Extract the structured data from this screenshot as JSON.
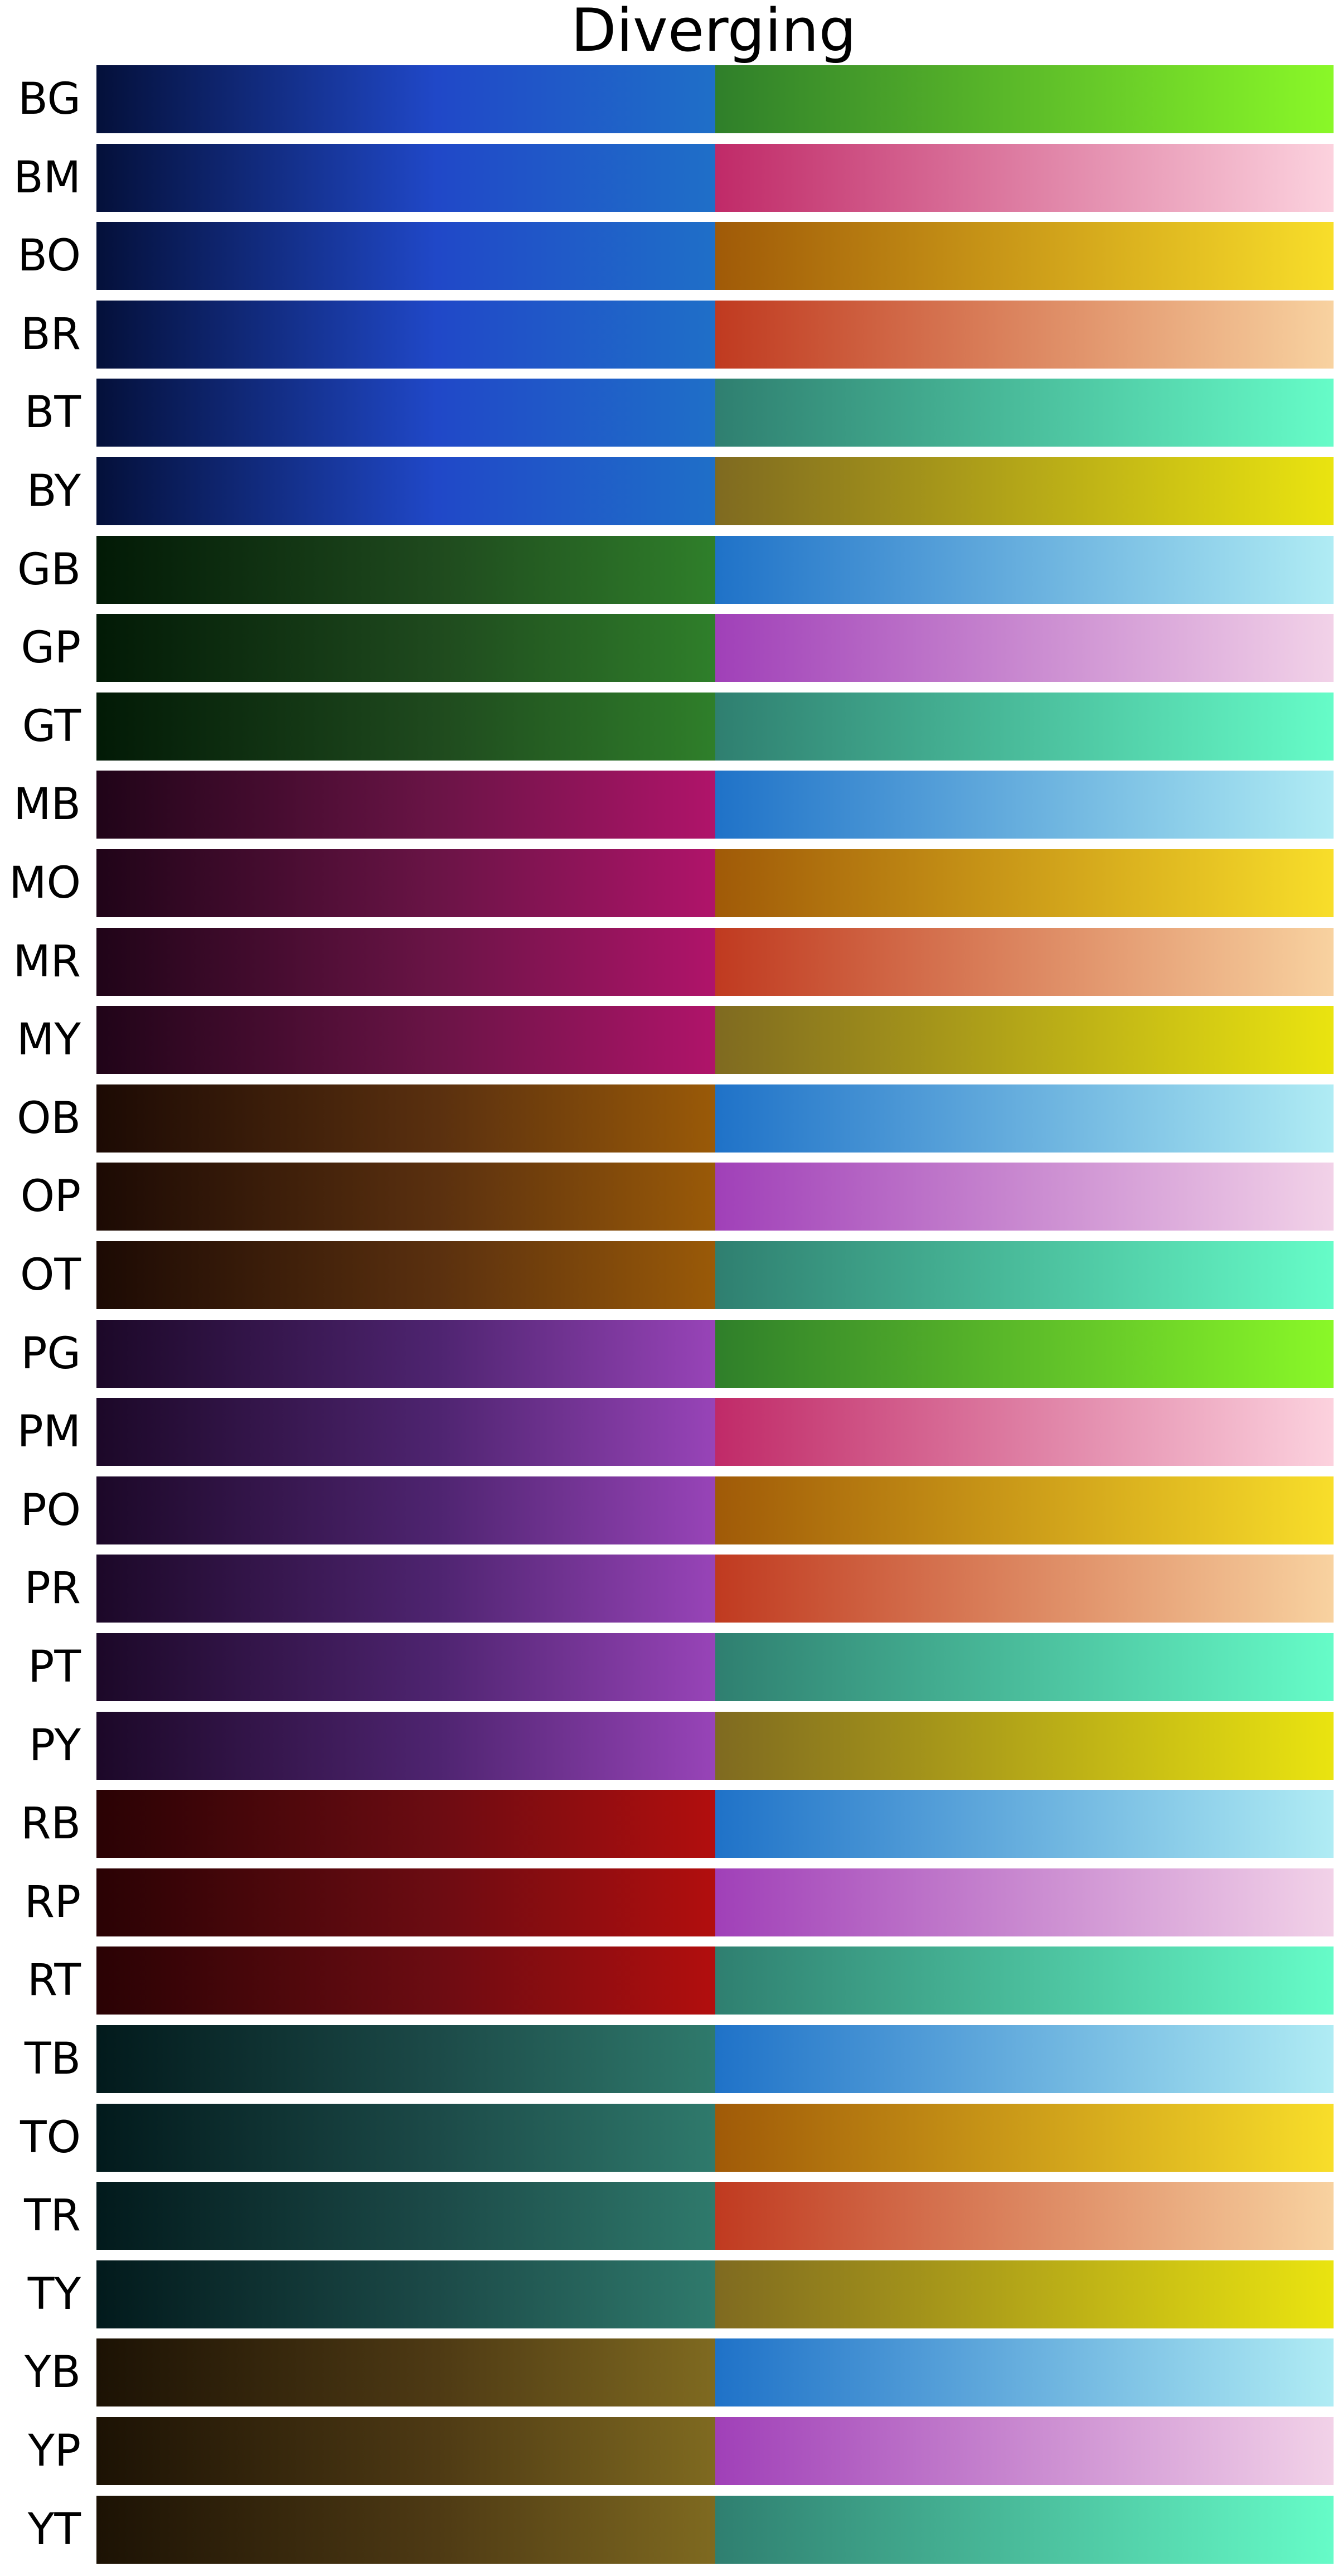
{
  "title": "Diverging",
  "chart_data": {
    "type": "heatmap",
    "title": "Diverging",
    "xlabel": "",
    "ylabel": "",
    "grid": false,
    "legend": "none",
    "colormaps": [
      {
        "name": "BG",
        "stops": [
          "#04103a",
          "#2048c8",
          "#1f6fc8",
          "#2f7f2a",
          "#8af828"
        ]
      },
      {
        "name": "BM",
        "stops": [
          "#04103a",
          "#2048c8",
          "#1f6fc8",
          "#c02a68",
          "#fcd2de"
        ]
      },
      {
        "name": "BO",
        "stops": [
          "#04103a",
          "#2048c8",
          "#1f6fc8",
          "#a05a08",
          "#f8de2a"
        ]
      },
      {
        "name": "BR",
        "stops": [
          "#04103a",
          "#2048c8",
          "#1f6fc8",
          "#c03a20",
          "#f8d2a0"
        ]
      },
      {
        "name": "BT",
        "stops": [
          "#04103a",
          "#2048c8",
          "#1f6fc8",
          "#2f7f70",
          "#66fcc8"
        ]
      },
      {
        "name": "BY",
        "stops": [
          "#04103a",
          "#2048c8",
          "#1f6fc8",
          "#7f6a20",
          "#eae410"
        ]
      },
      {
        "name": "GB",
        "stops": [
          "#021a06",
          "#1f4a1e",
          "#2f7f2a",
          "#1f72c8",
          "#b0ecf4"
        ]
      },
      {
        "name": "GP",
        "stops": [
          "#021a06",
          "#1f4a1e",
          "#2f7f2a",
          "#a040b8",
          "#f2d2e8"
        ]
      },
      {
        "name": "GT",
        "stops": [
          "#021a06",
          "#1f4a1e",
          "#2f7f2a",
          "#2f7f70",
          "#66fcc8"
        ]
      },
      {
        "name": "MB",
        "stops": [
          "#200418",
          "#6a1446",
          "#b0146a",
          "#1f72c8",
          "#b0ecf4"
        ]
      },
      {
        "name": "MO",
        "stops": [
          "#200418",
          "#6a1446",
          "#b0146a",
          "#a05a08",
          "#f8de2a"
        ]
      },
      {
        "name": "MR",
        "stops": [
          "#200418",
          "#6a1446",
          "#b0146a",
          "#c03a20",
          "#f8d2a0"
        ]
      },
      {
        "name": "MY",
        "stops": [
          "#200418",
          "#6a1446",
          "#b0146a",
          "#7f6a20",
          "#eae410"
        ]
      },
      {
        "name": "OB",
        "stops": [
          "#1c0a04",
          "#5a300f",
          "#9a5a08",
          "#1f72c8",
          "#b0ecf4"
        ]
      },
      {
        "name": "OP",
        "stops": [
          "#1c0a04",
          "#5a300f",
          "#9a5a08",
          "#a040b8",
          "#f2d2e8"
        ]
      },
      {
        "name": "OT",
        "stops": [
          "#1c0a04",
          "#5a300f",
          "#9a5a08",
          "#2f7f70",
          "#66fcc8"
        ]
      },
      {
        "name": "PG",
        "stops": [
          "#1c0828",
          "#4e2470",
          "#9844b8",
          "#2f7f2a",
          "#8af828"
        ]
      },
      {
        "name": "PM",
        "stops": [
          "#1c0828",
          "#4e2470",
          "#9844b8",
          "#c02a68",
          "#fcd2de"
        ]
      },
      {
        "name": "PO",
        "stops": [
          "#1c0828",
          "#4e2470",
          "#9844b8",
          "#a05a08",
          "#f8de2a"
        ]
      },
      {
        "name": "PR",
        "stops": [
          "#1c0828",
          "#4e2470",
          "#9844b8",
          "#c03a20",
          "#f8d2a0"
        ]
      },
      {
        "name": "PT",
        "stops": [
          "#1c0828",
          "#4e2470",
          "#9844b8",
          "#2f7f70",
          "#66fcc8"
        ]
      },
      {
        "name": "PY",
        "stops": [
          "#1c0828",
          "#4e2470",
          "#9844b8",
          "#7f6a20",
          "#eae410"
        ]
      },
      {
        "name": "RB",
        "stops": [
          "#2a0204",
          "#6c0c12",
          "#b20e0e",
          "#1f72c8",
          "#b0ecf4"
        ]
      },
      {
        "name": "RP",
        "stops": [
          "#2a0204",
          "#6c0c12",
          "#b20e0e",
          "#a040b8",
          "#f2d2e8"
        ]
      },
      {
        "name": "RT",
        "stops": [
          "#2a0204",
          "#6c0c12",
          "#b20e0e",
          "#2f7f70",
          "#66fcc8"
        ]
      },
      {
        "name": "TB",
        "stops": [
          "#021a1c",
          "#1c4a48",
          "#2f7a6c",
          "#1f72c8",
          "#b0ecf4"
        ]
      },
      {
        "name": "TO",
        "stops": [
          "#021a1c",
          "#1c4a48",
          "#2f7a6c",
          "#a05a08",
          "#f8de2a"
        ]
      },
      {
        "name": "TR",
        "stops": [
          "#021a1c",
          "#1c4a48",
          "#2f7a6c",
          "#c03a20",
          "#f8d2a0"
        ]
      },
      {
        "name": "TY",
        "stops": [
          "#021a1c",
          "#1c4a48",
          "#2f7a6c",
          "#7f6a20",
          "#eae410"
        ]
      },
      {
        "name": "YB",
        "stops": [
          "#1c1204",
          "#4e3a14",
          "#7f6a20",
          "#1f72c8",
          "#b0ecf4"
        ]
      },
      {
        "name": "YP",
        "stops": [
          "#1c1204",
          "#4e3a14",
          "#7f6a20",
          "#a040b8",
          "#f2d2e8"
        ]
      },
      {
        "name": "YT",
        "stops": [
          "#1c1204",
          "#4e3a14",
          "#7f6a20",
          "#2f7f70",
          "#66fcc8"
        ]
      }
    ]
  }
}
